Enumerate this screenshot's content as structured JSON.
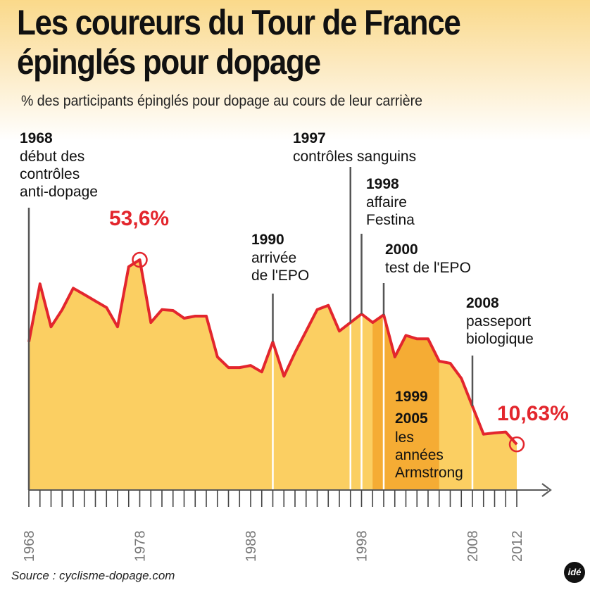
{
  "title_line1": "Les coureurs du Tour de France",
  "title_line2": "épinglés pour dopage",
  "source": "Source : cyclisme-dopage.com",
  "logo": "idé",
  "colors": {
    "fill": "#fbcf62",
    "armstrong": "#f5ac34",
    "line": "#e3262d",
    "axis": "#5a5a5a",
    "text": "#111111"
  },
  "chart_data": {
    "type": "area",
    "title": "Les coureurs du Tour de France épinglés pour dopage",
    "subtitle": "% des participants épinglés pour dopage au cours de leur carrière",
    "xlabel": "",
    "ylabel": "%",
    "xlim": [
      1968,
      2012
    ],
    "ylim": [
      0,
      60
    ],
    "grid": false,
    "x_ticks": [
      1968,
      1978,
      1988,
      1998,
      2008,
      2012
    ],
    "x": [
      1968,
      1969,
      1970,
      1971,
      1972,
      1973,
      1974,
      1975,
      1976,
      1977,
      1978,
      1979,
      1980,
      1981,
      1982,
      1983,
      1984,
      1985,
      1986,
      1987,
      1988,
      1989,
      1990,
      1991,
      1992,
      1993,
      1994,
      1995,
      1996,
      1997,
      1998,
      1999,
      2000,
      2001,
      2002,
      2003,
      2004,
      2005,
      2006,
      2007,
      2008,
      2009,
      2010,
      2011,
      2012
    ],
    "values": [
      34.5,
      48,
      38,
      42,
      47,
      45.5,
      44,
      42.5,
      38,
      52,
      53.6,
      39,
      42,
      41.8,
      40,
      40.5,
      40.5,
      31,
      28.5,
      28.5,
      29,
      27.5,
      34.5,
      26.5,
      32,
      37,
      42,
      43,
      37,
      39,
      41,
      39,
      40.8,
      31,
      36,
      35.2,
      35.2,
      30,
      29.5,
      26,
      19.5,
      13,
      13.3,
      13.5,
      10.63
    ],
    "peak": {
      "x": 1978,
      "value": 53.6,
      "label": "53,6%"
    },
    "last": {
      "x": 2012,
      "value": 10.63,
      "label": "10,63%"
    },
    "armstrong_span": [
      1999,
      2005
    ],
    "annotations": [
      {
        "year": 1968,
        "year_label": "1968",
        "lines": [
          "début des",
          "contrôles",
          "anti-dopage"
        ]
      },
      {
        "year": 1990,
        "year_label": "1990",
        "lines": [
          "arrivée",
          "de l'EPO"
        ]
      },
      {
        "year": 1997,
        "year_label": "1997",
        "lines": [
          "contrôles sanguins"
        ]
      },
      {
        "year": 1998,
        "year_label": "1998",
        "lines": [
          "affaire",
          "Festina"
        ]
      },
      {
        "year": 2000,
        "year_label": "2000",
        "lines": [
          "test de l'EPO"
        ]
      },
      {
        "year": 2008,
        "year_label": "2008",
        "lines": [
          "passeport",
          "biologique"
        ]
      }
    ],
    "armstrong_label": {
      "years": [
        "1999",
        "2005"
      ],
      "lines": [
        "les",
        "années",
        "Armstrong"
      ]
    }
  }
}
